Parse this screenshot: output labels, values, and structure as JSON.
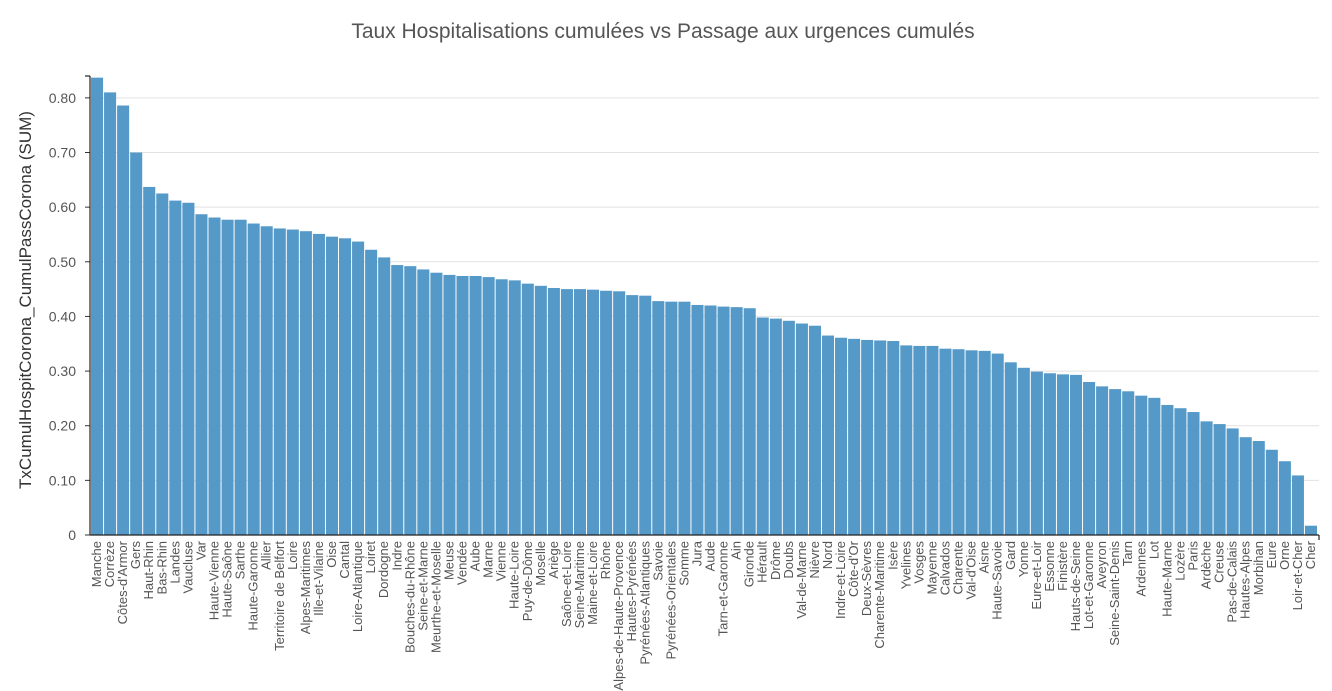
{
  "chart_data": {
    "type": "bar",
    "title": "Taux Hospitalisations cumulées vs Passage aux urgences cumulés",
    "xlabel": "",
    "ylabel": "TxCumulHospitCorona_CumulPassCorona (SUM)",
    "ylim": [
      0,
      0.84
    ],
    "yticks": [
      0,
      0.1,
      0.2,
      0.3,
      0.4,
      0.5,
      0.6,
      0.7,
      0.8
    ],
    "ytick_labels": [
      "0",
      "0.10",
      "0.20",
      "0.30",
      "0.40",
      "0.50",
      "0.60",
      "0.70",
      "0.80"
    ],
    "grid": true,
    "bar_color": "#5499c7",
    "categories": [
      "Manche",
      "Corrèze",
      "Côtes-d'Armor",
      "Gers",
      "Haut-Rhin",
      "Bas-Rhin",
      "Landes",
      "Vaucluse",
      "Var",
      "Haute-Vienne",
      "Haute-Saône",
      "Sarthe",
      "Haute-Garonne",
      "Allier",
      "Territoire de Belfort",
      "Loire",
      "Alpes-Maritimes",
      "Ille-et-Vilaine",
      "Oise",
      "Cantal",
      "Loire-Atlantique",
      "Loiret",
      "Dordogne",
      "Indre",
      "Bouches-du-Rhône",
      "Seine-et-Marne",
      "Meurthe-et-Moselle",
      "Meuse",
      "Vendée",
      "Aube",
      "Marne",
      "Vienne",
      "Haute-Loire",
      "Puy-de-Dôme",
      "Moselle",
      "Ariège",
      "Saône-et-Loire",
      "Seine-Maritime",
      "Maine-et-Loire",
      "Rhône",
      "Alpes-de-Haute-Provence",
      "Hautes-Pyrénées",
      "Pyrénées-Atlantiques",
      "Savoie",
      "Pyrénées-Orientales",
      "Somme",
      "Jura",
      "Aude",
      "Tarn-et-Garonne",
      "Ain",
      "Gironde",
      "Hérault",
      "Drôme",
      "Doubs",
      "Val-de-Marne",
      "Nièvre",
      "Nord",
      "Indre-et-Loire",
      "Côte-d'Or",
      "Deux-Sèvres",
      "Charente-Maritime",
      "Isère",
      "Yvelines",
      "Vosges",
      "Mayenne",
      "Calvados",
      "Charente",
      "Val-d'Oise",
      "Aisne",
      "Haute-Savoie",
      "Gard",
      "Yonne",
      "Eure-et-Loir",
      "Essonne",
      "Finistère",
      "Hauts-de-Seine",
      "Lot-et-Garonne",
      "Aveyron",
      "Seine-Saint-Denis",
      "Tarn",
      "Ardennes",
      "Lot",
      "Haute-Marne",
      "Lozère",
      "Paris",
      "Ardèche",
      "Creuse",
      "Pas-de-Calais",
      "Hautes-Alpes",
      "Morbihan",
      "Eure",
      "Orne",
      "Loir-et-Cher",
      "Cher"
    ],
    "values": [
      0.837,
      0.81,
      0.786,
      0.7,
      0.637,
      0.625,
      0.612,
      0.608,
      0.587,
      0.581,
      0.577,
      0.577,
      0.57,
      0.565,
      0.561,
      0.559,
      0.556,
      0.551,
      0.546,
      0.543,
      0.537,
      0.522,
      0.508,
      0.494,
      0.492,
      0.486,
      0.48,
      0.476,
      0.474,
      0.474,
      0.472,
      0.468,
      0.466,
      0.46,
      0.456,
      0.452,
      0.45,
      0.45,
      0.449,
      0.447,
      0.446,
      0.439,
      0.438,
      0.428,
      0.427,
      0.427,
      0.421,
      0.42,
      0.418,
      0.417,
      0.415,
      0.398,
      0.396,
      0.392,
      0.387,
      0.383,
      0.365,
      0.361,
      0.359,
      0.357,
      0.356,
      0.355,
      0.347,
      0.346,
      0.346,
      0.341,
      0.34,
      0.338,
      0.337,
      0.332,
      0.316,
      0.306,
      0.299,
      0.296,
      0.294,
      0.293,
      0.28,
      0.272,
      0.267,
      0.263,
      0.255,
      0.251,
      0.238,
      0.232,
      0.225,
      0.208,
      0.203,
      0.195,
      0.179,
      0.172,
      0.156,
      0.135,
      0.109,
      0.017
    ]
  }
}
